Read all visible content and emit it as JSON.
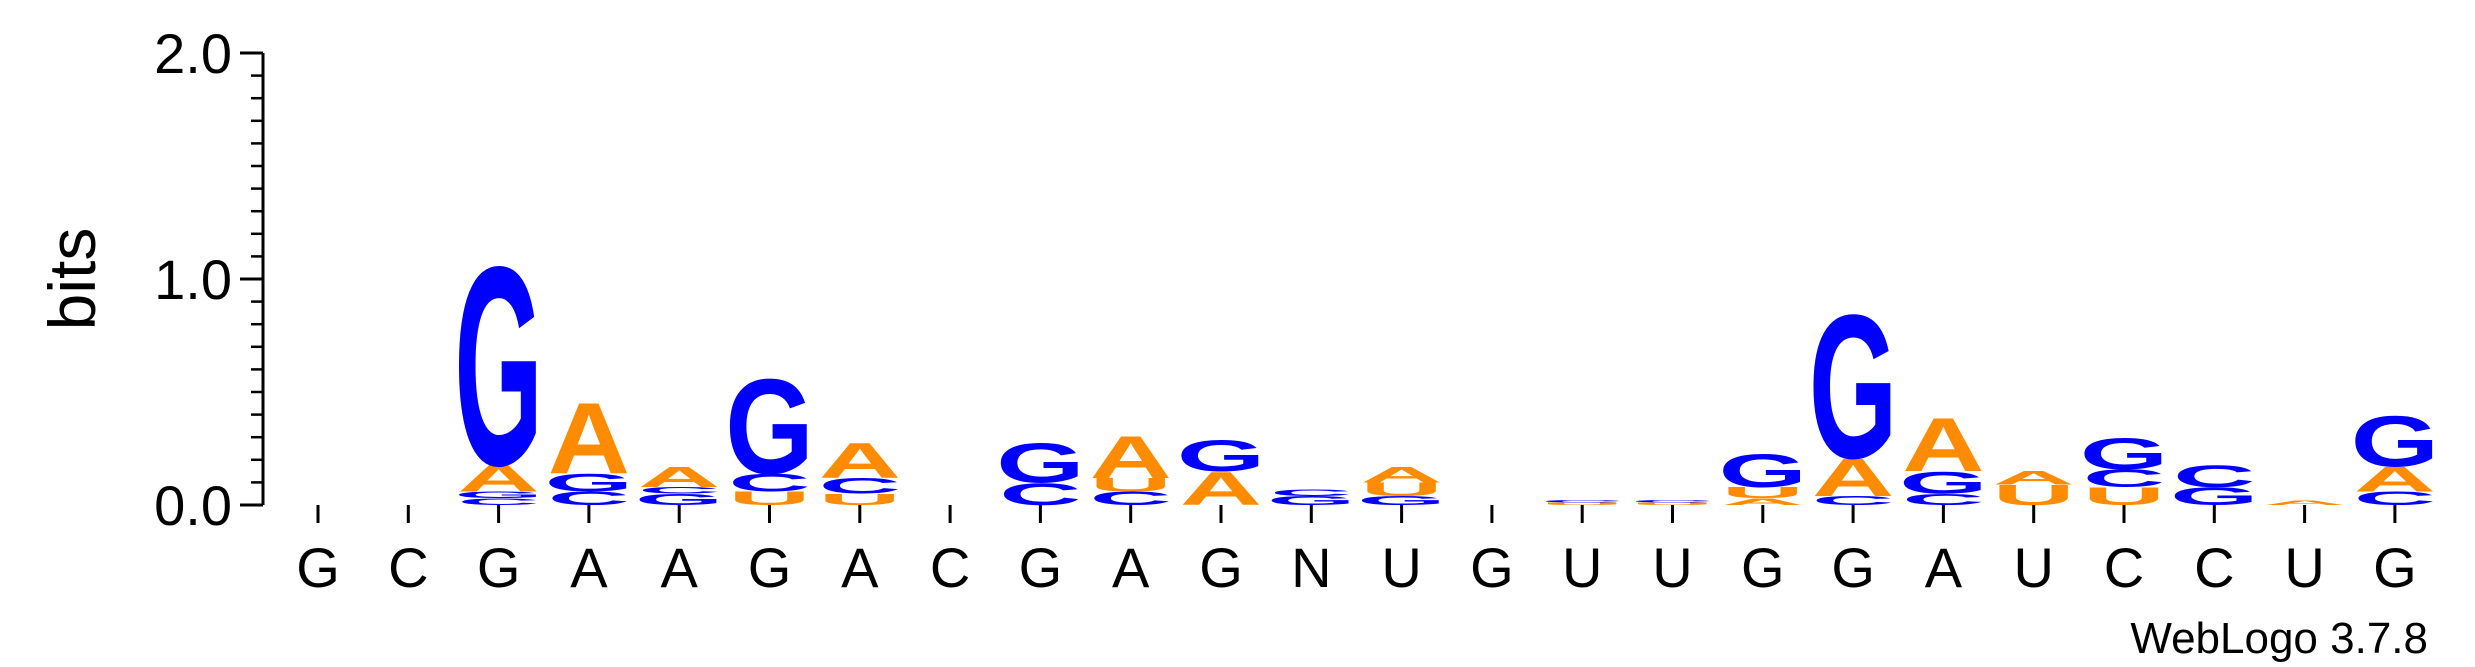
{
  "chart_data": {
    "type": "sequence-logo",
    "ylabel": "bits",
    "ylim": [
      0,
      2.0
    ],
    "yticks": [
      "0.0",
      "1.0",
      "2.0"
    ],
    "credit": "WebLogo 3.7.8",
    "colors": {
      "G": "#0000ff",
      "C": "#0000ff",
      "A": "#ff8c00",
      "U": "#ff8c00"
    },
    "categories": [
      "G",
      "C",
      "G",
      "A",
      "A",
      "G",
      "A",
      "C",
      "G",
      "A",
      "G",
      "N",
      "U",
      "G",
      "U",
      "U",
      "G",
      "G",
      "A",
      "U",
      "C",
      "C",
      "U",
      "G"
    ],
    "stacks": [
      [],
      [],
      [
        {
          "l": "C",
          "v": 0.03
        },
        {
          "l": "G",
          "v": 0.03
        },
        {
          "l": "A",
          "v": 0.12
        },
        {
          "l": "G",
          "v": 0.9
        }
      ],
      [
        {
          "l": "C",
          "v": 0.06
        },
        {
          "l": "G",
          "v": 0.08
        },
        {
          "l": "A",
          "v": 0.32
        }
      ],
      [
        {
          "l": "G",
          "v": 0.05
        },
        {
          "l": "C",
          "v": 0.03
        },
        {
          "l": "A",
          "v": 0.09
        }
      ],
      [
        {
          "l": "U",
          "v": 0.06
        },
        {
          "l": "C",
          "v": 0.08
        },
        {
          "l": "G",
          "v": 0.43
        }
      ],
      [
        {
          "l": "U",
          "v": 0.05
        },
        {
          "l": "C",
          "v": 0.07
        },
        {
          "l": "A",
          "v": 0.16
        }
      ],
      [],
      [
        {
          "l": "C",
          "v": 0.1
        },
        {
          "l": "G",
          "v": 0.18
        }
      ],
      [
        {
          "l": "C",
          "v": 0.06
        },
        {
          "l": "U",
          "v": 0.06
        },
        {
          "l": "A",
          "v": 0.19
        }
      ],
      [
        {
          "l": "A",
          "v": 0.15
        },
        {
          "l": "G",
          "v": 0.14
        }
      ],
      [
        {
          "l": "G",
          "v": 0.04
        },
        {
          "l": "C",
          "v": 0.03
        }
      ],
      [
        {
          "l": "G",
          "v": 0.04
        },
        {
          "l": "U",
          "v": 0.06
        },
        {
          "l": "A",
          "v": 0.07
        }
      ],
      [],
      [
        {
          "l": "U",
          "v": 0.01
        },
        {
          "l": "C",
          "v": 0.01
        }
      ],
      [
        {
          "l": "U",
          "v": 0.01
        },
        {
          "l": "C",
          "v": 0.01
        }
      ],
      [
        {
          "l": "A",
          "v": 0.03
        },
        {
          "l": "U",
          "v": 0.05
        },
        {
          "l": "G",
          "v": 0.15
        }
      ],
      [
        {
          "l": "C",
          "v": 0.04
        },
        {
          "l": "A",
          "v": 0.17
        },
        {
          "l": "G",
          "v": 0.65
        }
      ],
      [
        {
          "l": "C",
          "v": 0.05
        },
        {
          "l": "G",
          "v": 0.1
        },
        {
          "l": "A",
          "v": 0.24
        }
      ],
      [
        {
          "l": "U",
          "v": 0.09
        },
        {
          "l": "A",
          "v": 0.06
        }
      ],
      [
        {
          "l": "U",
          "v": 0.08
        },
        {
          "l": "C",
          "v": 0.08
        },
        {
          "l": "G",
          "v": 0.14
        }
      ],
      [
        {
          "l": "G",
          "v": 0.08
        },
        {
          "l": "C",
          "v": 0.1
        }
      ],
      [
        {
          "l": "A",
          "v": 0.02
        }
      ],
      [
        {
          "l": "C",
          "v": 0.06
        },
        {
          "l": "A",
          "v": 0.11
        },
        {
          "l": "G",
          "v": 0.23
        }
      ]
    ]
  }
}
